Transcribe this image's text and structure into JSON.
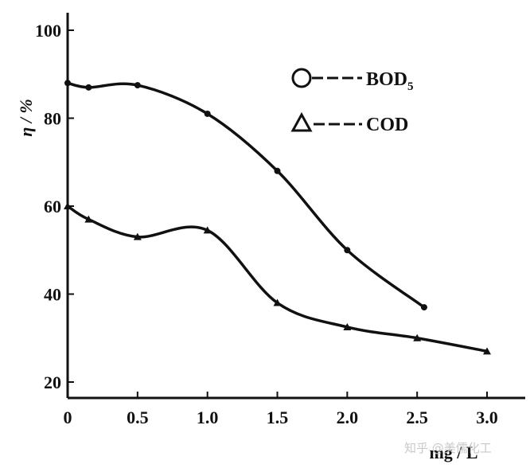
{
  "chart_data": {
    "type": "line",
    "ylabel": "η / %",
    "xlabel": "mg / L",
    "xlim": [
      0,
      3.0
    ],
    "ylim": [
      20,
      100
    ],
    "x_ticks": [
      "0",
      "0.5",
      "1.0",
      "1.5",
      "2.0",
      "2.5",
      "3.0"
    ],
    "y_ticks": [
      "20",
      "40",
      "60",
      "80",
      "100"
    ],
    "legend_position": "top-right",
    "grid": false,
    "series": [
      {
        "name": "BOD5",
        "marker": "circle",
        "x": [
          0,
          0.15,
          0.5,
          1.0,
          1.5,
          2.0,
          2.55
        ],
        "y": [
          88,
          87,
          87.5,
          81,
          68,
          50,
          37
        ]
      },
      {
        "name": "COD",
        "marker": "triangle",
        "x": [
          0,
          0.15,
          0.5,
          1.0,
          1.5,
          2.0,
          2.5,
          3.0
        ],
        "y": [
          60,
          57,
          53,
          54.5,
          38,
          32.5,
          30,
          27
        ]
      }
    ],
    "legend": [
      {
        "label": "BOD",
        "subscript": "5",
        "marker": "circle"
      },
      {
        "label": "COD",
        "marker": "triangle"
      }
    ]
  },
  "watermark": "知乎 @美儒化工"
}
